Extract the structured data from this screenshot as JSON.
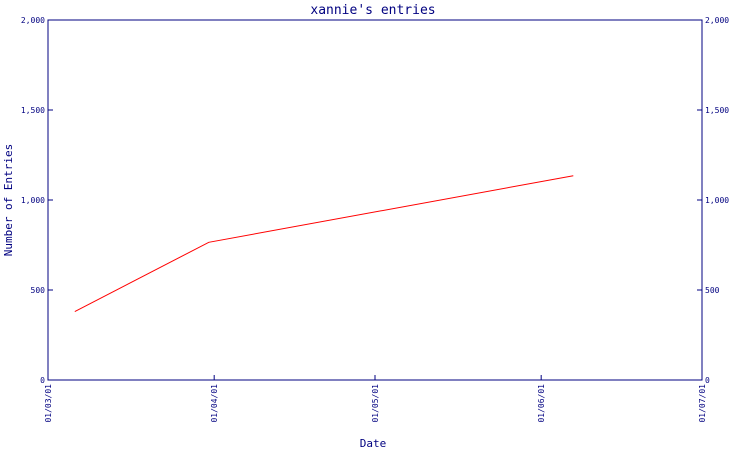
{
  "chart_data": {
    "type": "line",
    "title": "xannie's entries",
    "xlabel": "Date",
    "ylabel": "Number of Entries",
    "x_ticks": [
      "01/03/01",
      "01/04/01",
      "01/05/01",
      "01/06/01",
      "01/07/01"
    ],
    "x_range": [
      "2001-03-01",
      "2001-07-01"
    ],
    "ylim": [
      0,
      2000
    ],
    "y_ticks": [
      0,
      500,
      1000,
      1500,
      2000
    ],
    "y_tick_labels": [
      "0",
      "500",
      "1,000",
      "1,500",
      "2,000"
    ],
    "right_axis": true,
    "grid": false,
    "series": [
      {
        "color": "#ff0000",
        "x": [
          "2001-03-06",
          "2001-03-31",
          "2001-06-07"
        ],
        "y": [
          380,
          765,
          1135
        ]
      }
    ]
  },
  "colors": {
    "axis": "#000080",
    "series": "#ff0000"
  }
}
